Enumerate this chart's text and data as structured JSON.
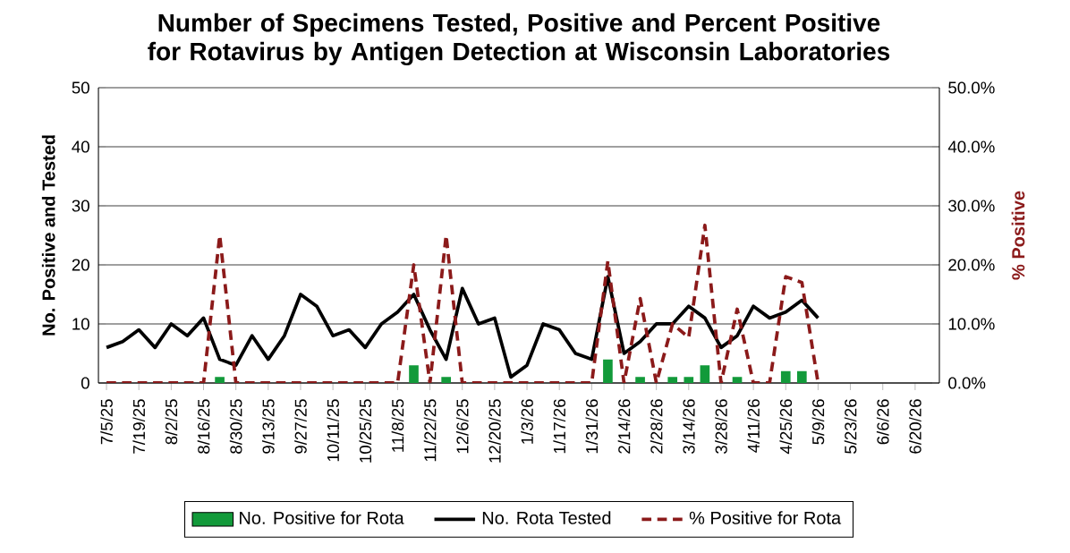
{
  "chart_data": {
    "type": "bar",
    "title": "Number of Specimens Tested, Positive and Percent Positive for Rotavirus by Antigen Detection at Wisconsin Laboratories",
    "ylabel": "No. Positive and Tested",
    "y2label": "% Positive",
    "categories": [
      "7/5/25",
      null,
      "7/19/25",
      null,
      "8/2/25",
      null,
      "8/16/25",
      null,
      "8/30/25",
      null,
      "9/13/25",
      null,
      "9/27/25",
      null,
      "10/11/25",
      null,
      "10/25/25",
      null,
      "11/8/25",
      null,
      "11/22/25",
      null,
      "12/6/25",
      null,
      "12/20/25",
      null,
      "1/3/26",
      null,
      "1/17/26",
      null,
      "1/31/26",
      null,
      "2/14/26",
      null,
      "2/28/26",
      null,
      "3/14/26",
      null,
      "3/28/26",
      null,
      "4/11/26",
      null,
      "4/25/26",
      null,
      "5/9/26",
      null,
      "5/23/26",
      null,
      "6/6/26",
      null,
      "6/20/26",
      null
    ],
    "series": [
      {
        "name": "No. Positive for Rota",
        "color": "#129a3a",
        "values": [
          0,
          0,
          0,
          0,
          0,
          0,
          0,
          1,
          0,
          0,
          0,
          0,
          0,
          0,
          0,
          0,
          0,
          0,
          0,
          3,
          0,
          1,
          0,
          0,
          0,
          0,
          0,
          0,
          0,
          0,
          0,
          4,
          0,
          1,
          0,
          1,
          1,
          3,
          0,
          1,
          0,
          0,
          2,
          2,
          0,
          null,
          null,
          null,
          null,
          null,
          null,
          null
        ]
      },
      {
        "name": "No. Rota Tested",
        "type": "line",
        "color": "#000000",
        "line_style": "solid",
        "values": [
          6,
          7,
          9,
          6,
          10,
          8,
          11,
          4,
          3,
          8,
          4,
          8,
          15,
          13,
          8,
          9,
          6,
          10,
          12,
          15,
          9,
          4,
          16,
          10,
          11,
          1,
          3,
          10,
          9,
          5,
          4,
          18,
          5,
          7,
          10,
          10,
          13,
          11,
          6,
          8,
          13,
          11,
          12,
          14,
          11,
          null,
          null,
          null,
          null,
          null,
          null,
          null
        ]
      },
      {
        "name": "% Positive for Rota",
        "type": "line",
        "axis": "y2",
        "color": "#8b1a1a",
        "line_style": "dashed",
        "values": [
          0,
          0,
          0,
          0,
          0,
          0,
          0,
          25,
          0,
          0,
          0,
          0,
          0,
          0,
          0,
          0,
          0,
          0,
          0,
          20,
          0,
          25,
          0,
          0,
          0,
          0,
          0,
          0,
          0,
          0,
          0,
          20.6,
          0,
          14.3,
          0,
          10,
          7.7,
          26.7,
          0,
          12.5,
          0,
          0,
          18,
          17,
          0,
          null,
          null,
          null,
          null,
          null,
          null,
          null
        ]
      }
    ],
    "ylim": [
      0,
      50
    ],
    "yticks": [
      0,
      10,
      20,
      30,
      40,
      50
    ],
    "y2lim": [
      0,
      50
    ],
    "y2ticks": [
      {
        "value": 0,
        "label": "0.0%"
      },
      {
        "value": 10,
        "label": "10.0%"
      },
      {
        "value": 20,
        "label": "20.0%"
      },
      {
        "value": 30,
        "label": "30.0%"
      },
      {
        "value": 40,
        "label": "40.0%"
      },
      {
        "value": 50,
        "label": "50.0%"
      }
    ],
    "grid": "y",
    "legend": "bottom",
    "marker": "none"
  }
}
